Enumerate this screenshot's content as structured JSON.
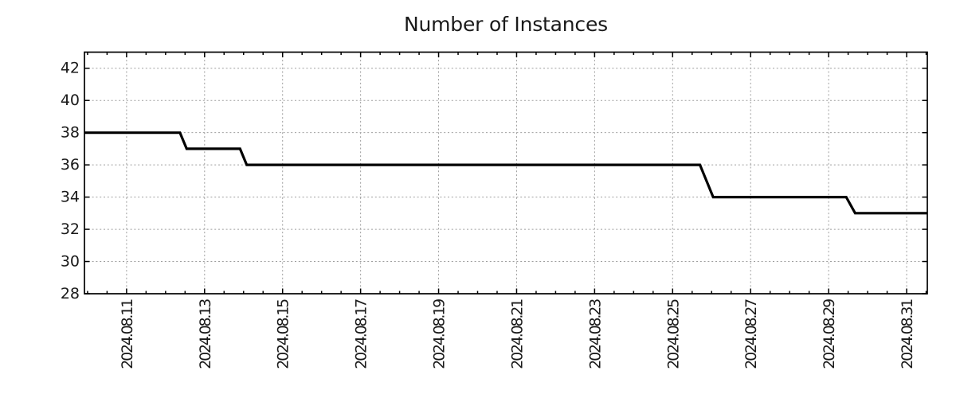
{
  "chart_data": {
    "type": "line",
    "subtype": "step-time-series",
    "title": "Number of Instances",
    "legend": "none",
    "grid": {
      "show": true,
      "style": "dotted"
    },
    "colors": {
      "line": "#000000",
      "border": "#000000",
      "grid": "#9e9e9e",
      "text": "#1a1a1a",
      "background": "#ffffff"
    },
    "x_axis": {
      "unit": "date (day of 2024-08, fractional)",
      "range": [
        9.92,
        31.53
      ],
      "minor_tick_interval": 0.5,
      "major_ticks": [
        {
          "t": 11,
          "label": "2024.08.11"
        },
        {
          "t": 13,
          "label": "2024.08.13"
        },
        {
          "t": 15,
          "label": "2024.08.15"
        },
        {
          "t": 17,
          "label": "2024.08.17"
        },
        {
          "t": 19,
          "label": "2024.08.19"
        },
        {
          "t": 21,
          "label": "2024.08.21"
        },
        {
          "t": 23,
          "label": "2024.08.23"
        },
        {
          "t": 25,
          "label": "2024.08.25"
        },
        {
          "t": 27,
          "label": "2024.08.27"
        },
        {
          "t": 29,
          "label": "2024.08.29"
        },
        {
          "t": 31,
          "label": "2024.08.31"
        }
      ]
    },
    "y_axis": {
      "unit": "instances",
      "range": [
        28,
        43
      ],
      "major_ticks": [
        {
          "v": 28,
          "label": "28"
        },
        {
          "v": 30,
          "label": "30"
        },
        {
          "v": 32,
          "label": "32"
        },
        {
          "v": 34,
          "label": "34"
        },
        {
          "v": 36,
          "label": "36"
        },
        {
          "v": 38,
          "label": "38"
        },
        {
          "v": 40,
          "label": "40"
        },
        {
          "v": 42,
          "label": "42"
        }
      ]
    },
    "series": [
      {
        "name": "instances",
        "color": "#000000",
        "points": [
          {
            "t": 9.92,
            "v": 38
          },
          {
            "t": 12.37,
            "v": 38
          },
          {
            "t": 12.54,
            "v": 37
          },
          {
            "t": 13.91,
            "v": 37
          },
          {
            "t": 14.08,
            "v": 36
          },
          {
            "t": 25.7,
            "v": 36
          },
          {
            "t": 26.04,
            "v": 34
          },
          {
            "t": 29.45,
            "v": 34
          },
          {
            "t": 29.68,
            "v": 33
          },
          {
            "t": 31.53,
            "v": 33
          }
        ]
      }
    ]
  }
}
